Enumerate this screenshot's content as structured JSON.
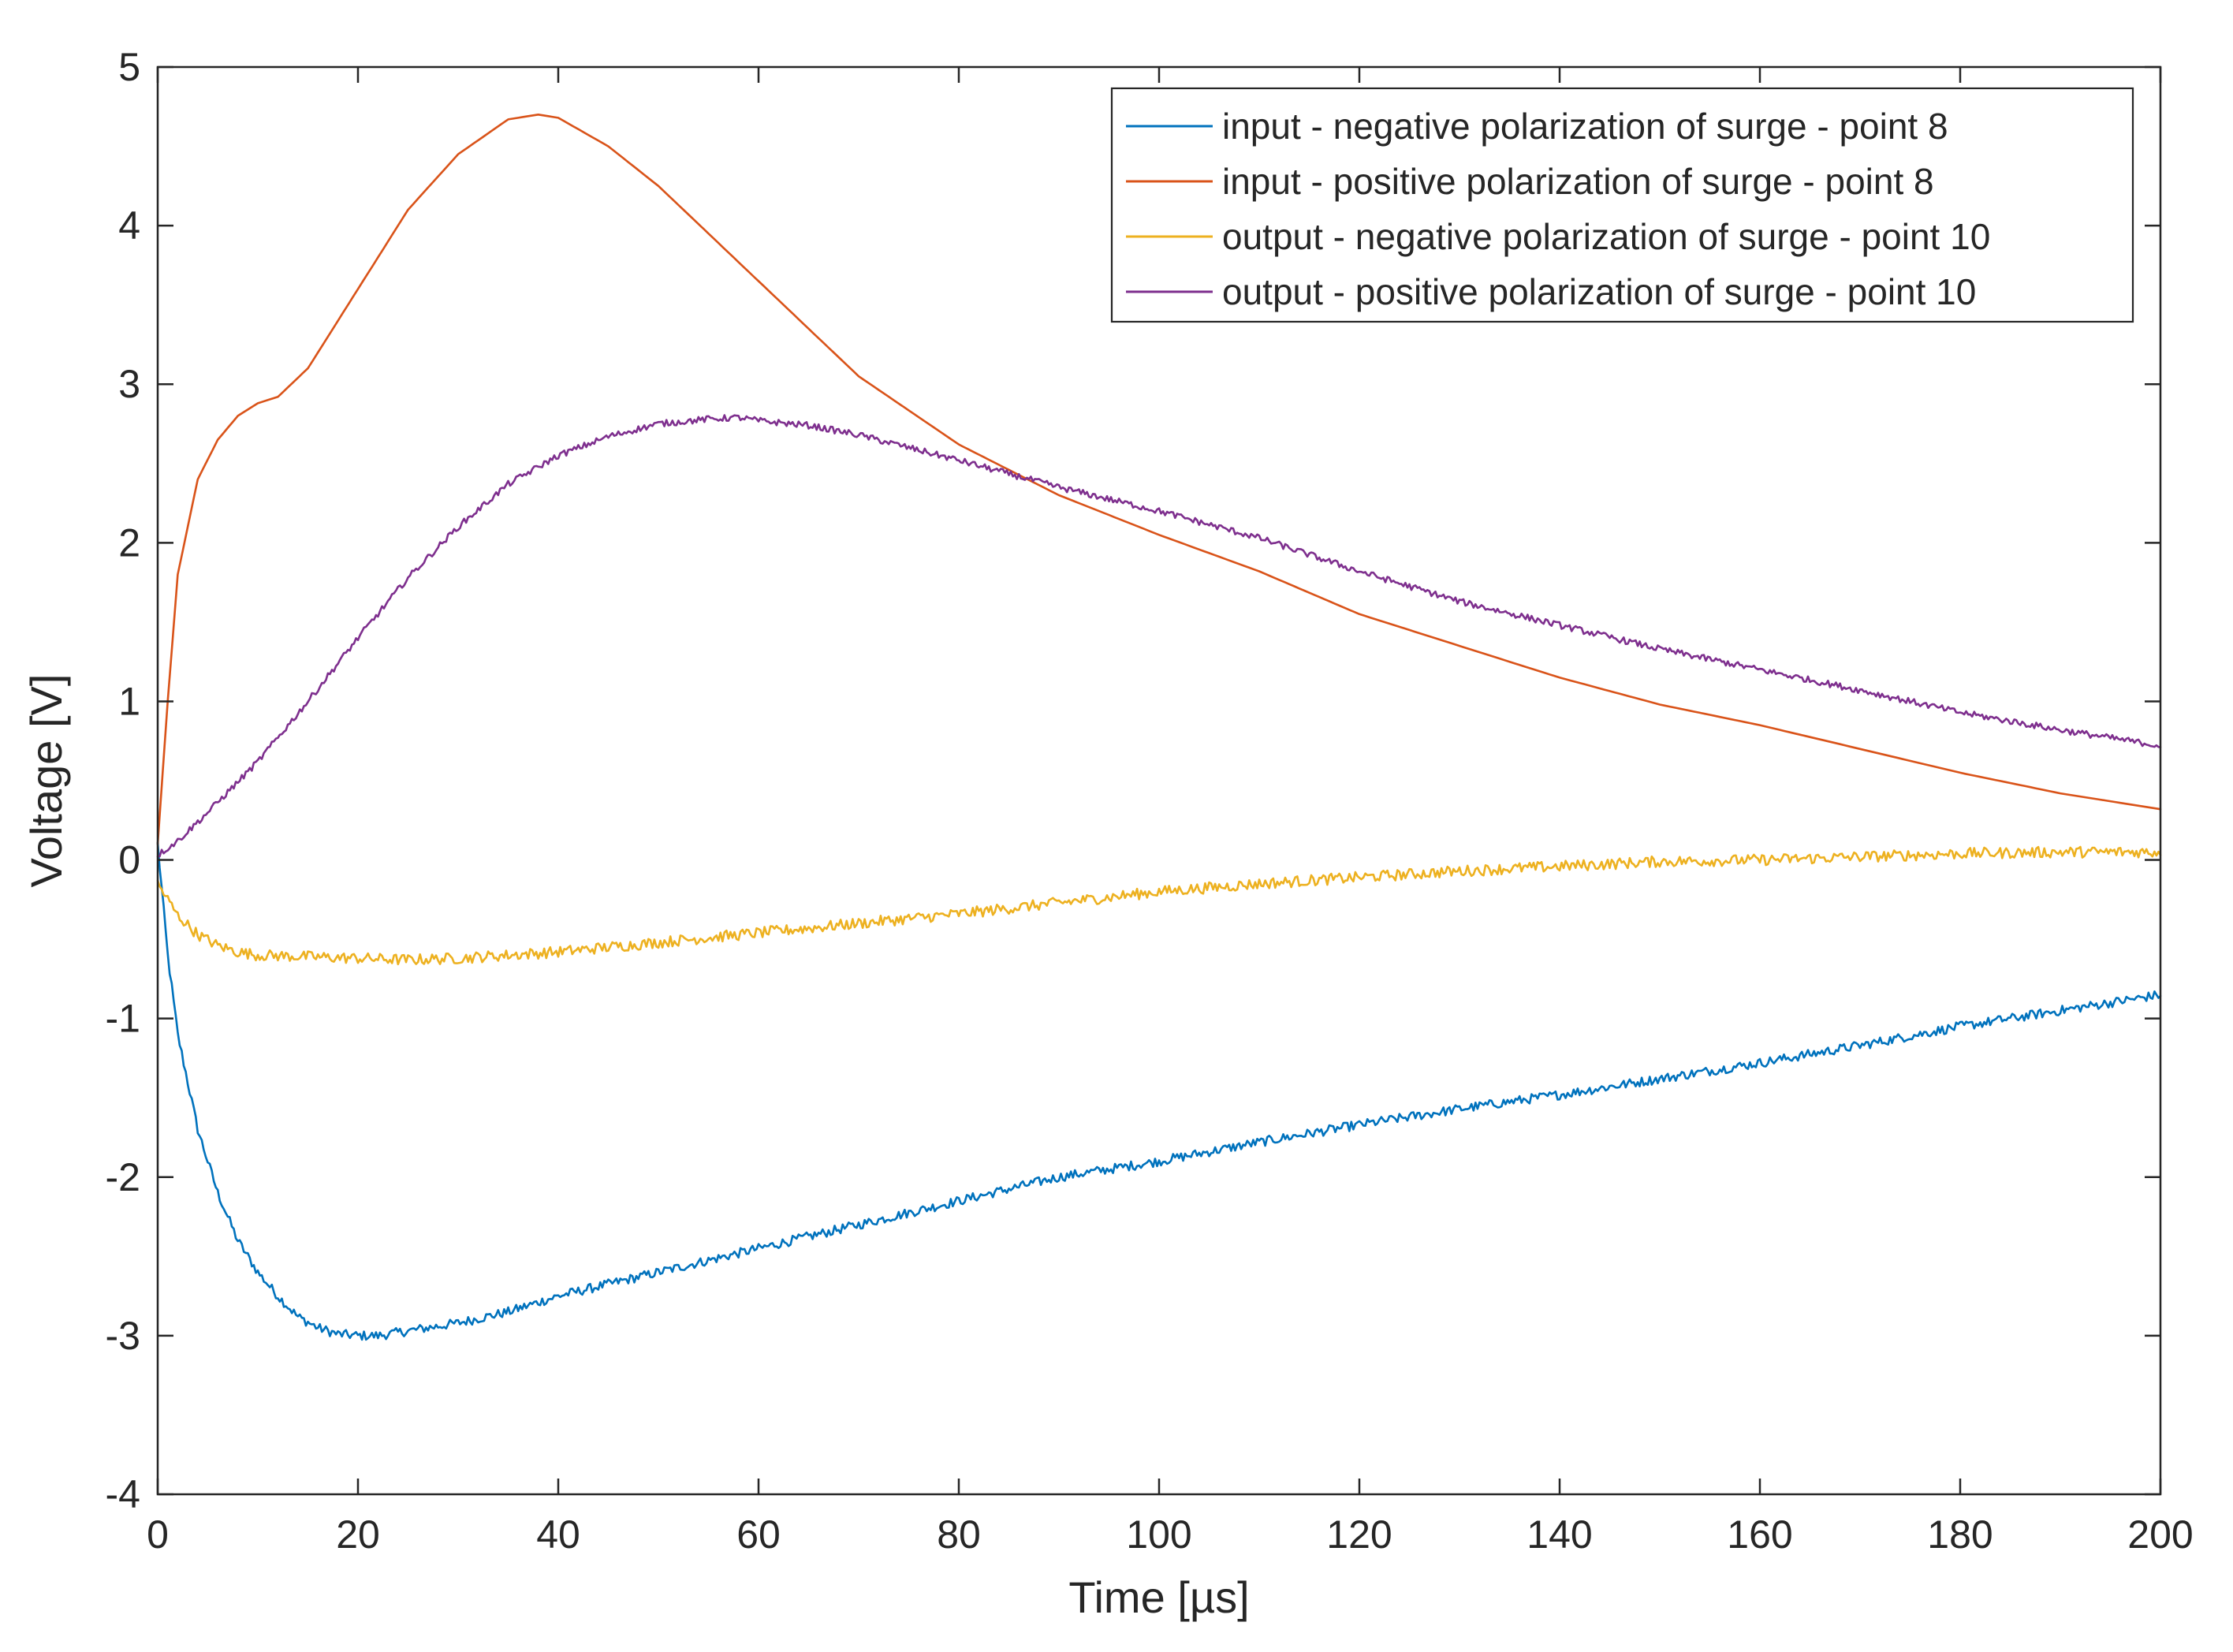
{
  "chart_data": {
    "type": "line",
    "title": "",
    "xlabel": "Time [µs]",
    "ylabel": "Voltage [V]",
    "xlim": [
      0,
      200
    ],
    "ylim": [
      -4,
      5
    ],
    "xticks": [
      0,
      20,
      40,
      60,
      80,
      100,
      120,
      140,
      160,
      180,
      200
    ],
    "yticks": [
      -4,
      -3,
      -2,
      -1,
      0,
      1,
      2,
      3,
      4,
      5
    ],
    "grid": false,
    "legend_position": "top-right",
    "series": [
      {
        "name": "input - negative polarization of surge - point 8",
        "color": "#0072BD",
        "noise": 0.03,
        "x": [
          0,
          1,
          2,
          4,
          6,
          8,
          10,
          12,
          14,
          16,
          18,
          20,
          22,
          25,
          30,
          35,
          40,
          50,
          60,
          70,
          80,
          90,
          100,
          110,
          120,
          130,
          140,
          150,
          160,
          170,
          180,
          190,
          200
        ],
        "y": [
          0.1,
          -0.6,
          -1.1,
          -1.7,
          -2.1,
          -2.4,
          -2.6,
          -2.75,
          -2.88,
          -2.95,
          -2.99,
          -3.0,
          -3.0,
          -2.97,
          -2.92,
          -2.85,
          -2.75,
          -2.6,
          -2.45,
          -2.3,
          -2.15,
          -2.0,
          -1.9,
          -1.78,
          -1.67,
          -1.57,
          -1.48,
          -1.38,
          -1.28,
          -1.17,
          -1.05,
          -0.95,
          -0.85
        ]
      },
      {
        "name": "input - positive polarization of surge - point 8",
        "color": "#D95319",
        "noise": 0.0,
        "x": [
          0,
          1,
          2,
          4,
          6,
          8,
          10,
          12,
          15,
          20,
          25,
          30,
          35,
          38,
          40,
          45,
          50,
          55,
          60,
          65,
          70,
          80,
          90,
          100,
          110,
          120,
          130,
          140,
          150,
          160,
          170,
          180,
          190,
          200
        ],
        "y": [
          0.1,
          1.0,
          1.8,
          2.4,
          2.65,
          2.8,
          2.88,
          2.92,
          3.1,
          3.6,
          4.1,
          4.45,
          4.67,
          4.7,
          4.68,
          4.5,
          4.25,
          3.95,
          3.65,
          3.35,
          3.05,
          2.62,
          2.3,
          2.05,
          1.82,
          1.55,
          1.35,
          1.15,
          0.98,
          0.85,
          0.7,
          0.55,
          0.42,
          0.32
        ]
      },
      {
        "name": "output - negative polarization of surge - point 10",
        "color": "#EDB120",
        "noise": 0.035,
        "x": [
          0,
          2,
          4,
          6,
          8,
          10,
          15,
          20,
          25,
          30,
          40,
          50,
          60,
          70,
          80,
          90,
          100,
          110,
          120,
          130,
          140,
          150,
          160,
          170,
          180,
          190,
          200
        ],
        "y": [
          -0.15,
          -0.35,
          -0.47,
          -0.54,
          -0.58,
          -0.6,
          -0.61,
          -0.62,
          -0.63,
          -0.62,
          -0.58,
          -0.52,
          -0.46,
          -0.4,
          -0.34,
          -0.27,
          -0.2,
          -0.15,
          -0.11,
          -0.07,
          -0.04,
          -0.01,
          0.0,
          0.02,
          0.04,
          0.05,
          0.05
        ]
      },
      {
        "name": "output - positive polarization of surge - point 10",
        "color": "#7E2F8E",
        "noise": 0.02,
        "x": [
          0,
          2,
          5,
          10,
          15,
          20,
          25,
          30,
          35,
          40,
          45,
          50,
          55,
          58,
          60,
          65,
          70,
          75,
          80,
          90,
          100,
          110,
          120,
          130,
          140,
          150,
          160,
          170,
          180,
          190,
          200
        ],
        "y": [
          0.03,
          0.12,
          0.3,
          0.62,
          1.0,
          1.4,
          1.78,
          2.1,
          2.37,
          2.55,
          2.67,
          2.75,
          2.78,
          2.79,
          2.77,
          2.74,
          2.68,
          2.6,
          2.52,
          2.35,
          2.2,
          2.03,
          1.82,
          1.63,
          1.48,
          1.33,
          1.2,
          1.07,
          0.93,
          0.82,
          0.72
        ]
      }
    ]
  }
}
